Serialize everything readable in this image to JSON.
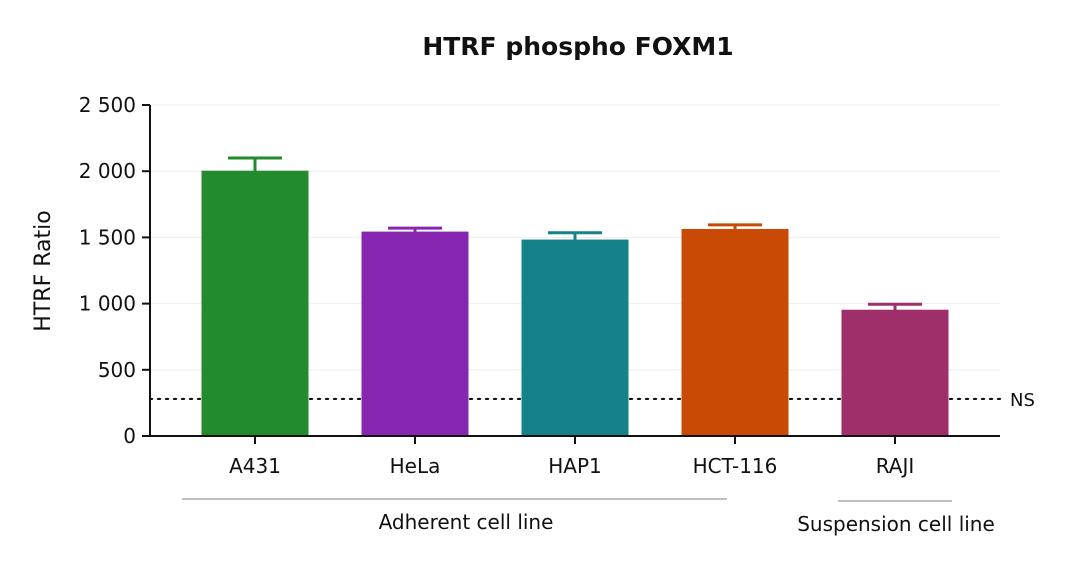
{
  "chart_data": {
    "type": "bar",
    "title": "HTRF phospho FOXM1",
    "ylabel": "HTRF Ratio",
    "xlabel": "",
    "ylim": [
      0,
      2500
    ],
    "yticks": [
      0,
      500,
      1000,
      1500,
      2000,
      2500
    ],
    "ytick_labels": [
      "0",
      "500",
      "1 000",
      "1 500",
      "2 000",
      "2 500"
    ],
    "grid": true,
    "categories": [
      "A431",
      "HeLa",
      "HAP1",
      "HCT-116",
      "RAJI"
    ],
    "values": [
      2000,
      1540,
      1480,
      1560,
      950
    ],
    "errors": [
      100,
      30,
      55,
      35,
      45
    ],
    "colors": [
      "#228B2E",
      "#8726B0",
      "#15828A",
      "#C84A05",
      "#9E2F6A"
    ],
    "reference_line": {
      "value": 280,
      "label": "NS",
      "style": "dotted"
    },
    "groups": [
      {
        "label": "Adherent cell line",
        "categories": [
          "A431",
          "HeLa",
          "HAP1",
          "HCT-116"
        ]
      },
      {
        "label": "Suspension cell line",
        "categories": [
          "RAJI"
        ]
      }
    ]
  }
}
